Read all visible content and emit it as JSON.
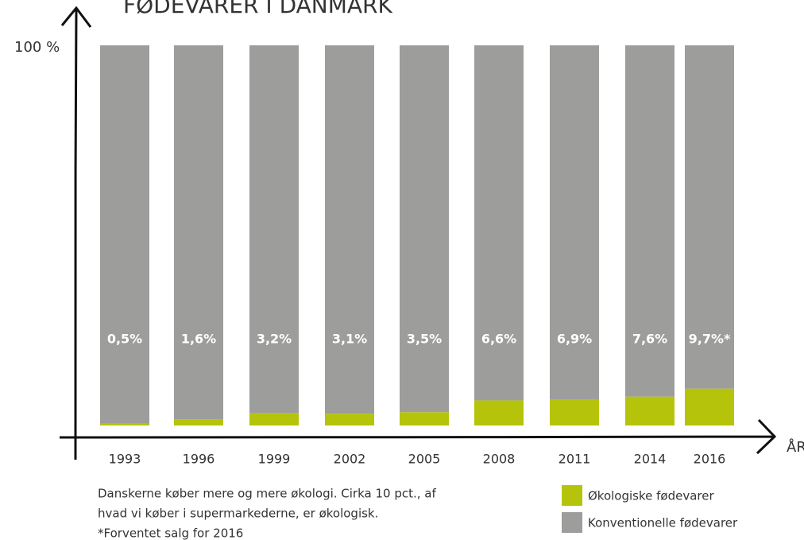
{
  "chart_data": {
    "type": "stacked_bar",
    "title": "FØDEVARER I DANMARK",
    "ylabel": {
      "value": 100,
      "label": "100 %"
    },
    "xlabel": "ÅR",
    "categories": [
      "1993",
      "1996",
      "1999",
      "2002",
      "2005",
      "2008",
      "2011",
      "2014",
      "2016"
    ],
    "series": [
      {
        "name": "Økologiske fødevarer",
        "color": "#b5c40a",
        "values": [
          0.5,
          1.6,
          3.2,
          3.1,
          3.5,
          6.6,
          6.9,
          7.6,
          9.7
        ],
        "value_labels": [
          "0,5%",
          "1,6%",
          "3,2%",
          "3,1%",
          "3,5%",
          "6,6%",
          "6,9%",
          "7,6%",
          "9,7%*"
        ]
      },
      {
        "name": "Konventionelle fødevarer",
        "color": "#9d9d9c",
        "values": [
          99.5,
          98.4,
          96.8,
          96.9,
          96.5,
          93.4,
          93.1,
          92.4,
          90.3
        ]
      }
    ],
    "ylim": [
      0,
      100
    ],
    "caption": [
      "Danskerne køber mere og mere økologi. Cirka 10 pct., af",
      "hvad vi køber i supermarkederne, er økologisk.",
      "*Forventet salg for 2016"
    ]
  }
}
